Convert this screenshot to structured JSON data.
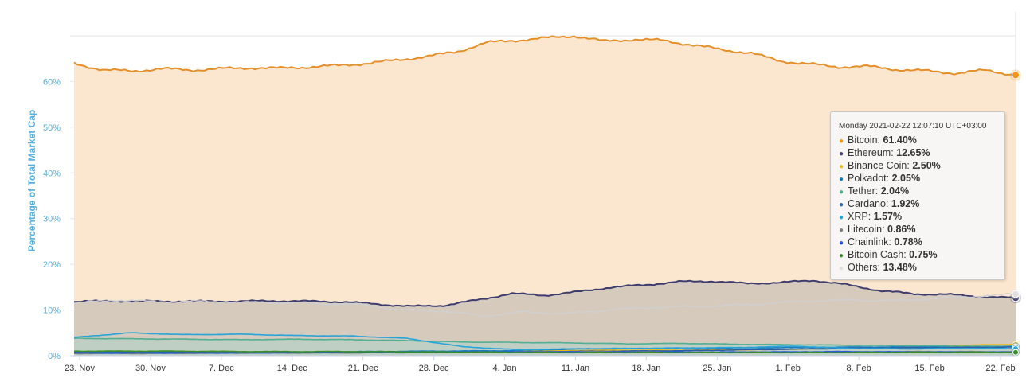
{
  "chart_data": {
    "type": "area",
    "ylabel": "Percentage of Total Market Cap",
    "y_ticks": [
      "0%",
      "10%",
      "20%",
      "30%",
      "40%",
      "50%",
      "60%"
    ],
    "ylim": [
      0,
      70
    ],
    "x_ticks": [
      "23. Nov",
      "30. Nov",
      "7. Dec",
      "14. Dec",
      "21. Dec",
      "28. Dec",
      "4. Jan",
      "11. Jan",
      "18. Jan",
      "25. Jan",
      "1. Feb",
      "8. Feb",
      "15. Feb",
      "22. Feb"
    ],
    "grid": true,
    "series": [
      {
        "name": "Bitcoin",
        "color": "#f7931a",
        "stroke": "#e58f2a",
        "fill": "#fbe6cf",
        "values": [
          64.0,
          62.5,
          62.3,
          62.8,
          62.5,
          62.8,
          63.0,
          62.9,
          63.2,
          63.5,
          64.0,
          64.7,
          65.5,
          66.5,
          68.5,
          69.0,
          69.5,
          70.0,
          68.8,
          69.2,
          69.0,
          68.0,
          67.0,
          66.2,
          64.5,
          63.8,
          63.2,
          63.3,
          62.6,
          62.3,
          61.8,
          62.5,
          61.4
        ]
      },
      {
        "name": "Ethereum",
        "color": "#3c3c6e",
        "stroke": "#3c3c6e",
        "fill": "#d6cabd",
        "values": [
          11.8,
          12.0,
          11.9,
          11.9,
          11.9,
          11.9,
          12.0,
          11.9,
          11.8,
          11.3,
          10.8,
          11.0,
          12.2,
          13.6,
          13.2,
          14.0,
          15.0,
          15.5,
          16.2,
          16.3,
          15.8,
          16.0,
          16.5,
          15.5,
          14.2,
          13.5,
          13.4,
          12.9,
          12.65
        ]
      },
      {
        "name": "Binance Coin",
        "color": "#f0b90b",
        "values": [
          0.9,
          0.9,
          0.8,
          0.8,
          0.8,
          0.9,
          0.9,
          1.1,
          1.2,
          1.2,
          1.3,
          1.5,
          1.8,
          2.2,
          2.5
        ]
      },
      {
        "name": "Polkadot",
        "color": "#1a7ac0",
        "values": [
          0.7,
          0.8,
          0.8,
          0.7,
          0.9,
          1.0,
          1.1,
          1.5,
          1.6,
          1.7,
          1.8,
          1.9,
          2.0,
          2.05
        ]
      },
      {
        "name": "Tether",
        "color": "#50af95",
        "values": [
          3.8,
          3.7,
          3.6,
          3.5,
          3.6,
          3.5,
          3.3,
          3.0,
          2.9,
          2.8,
          2.6,
          2.7,
          2.5,
          2.4,
          2.3,
          2.2,
          2.1,
          2.04
        ]
      },
      {
        "name": "Cardano",
        "color": "#2a5fa8",
        "values": [
          0.9,
          0.9,
          0.8,
          0.8,
          0.7,
          0.7,
          0.8,
          0.9,
          1.0,
          1.1,
          1.3,
          1.5,
          1.7,
          1.8,
          1.92
        ]
      },
      {
        "name": "XRP",
        "color": "#27a4d8",
        "values": [
          4.0,
          5.0,
          4.6,
          4.7,
          4.4,
          4.3,
          3.8,
          2.0,
          1.3,
          1.5,
          1.6,
          1.7,
          1.8,
          2.1,
          1.6,
          1.5,
          1.6,
          1.57
        ]
      },
      {
        "name": "Litecoin",
        "color": "#7b7f86",
        "values": [
          0.5,
          0.5,
          0.6,
          0.6,
          0.7,
          0.8,
          0.9,
          0.8,
          0.8,
          0.8,
          0.9,
          0.86
        ]
      },
      {
        "name": "Chainlink",
        "color": "#2a5ada",
        "values": [
          0.6,
          0.6,
          0.6,
          0.7,
          0.7,
          0.8,
          0.8,
          0.8,
          0.8,
          0.9,
          0.8,
          0.78
        ]
      },
      {
        "name": "Bitcoin Cash",
        "color": "#3a8e2a",
        "values": [
          1.0,
          1.0,
          0.9,
          0.9,
          0.8,
          0.7,
          0.7,
          0.7,
          0.7,
          0.75,
          0.75
        ]
      },
      {
        "name": "Others",
        "color": "#e0e0e0",
        "stroke": "#d0d0d0",
        "values": [
          11.5,
          12.2,
          11.8,
          11.9,
          11.7,
          11.6,
          11.4,
          11.2,
          10.0,
          9.8,
          8.7,
          9.6,
          9.2,
          10.0,
          10.5,
          10.8,
          11.0,
          11.5,
          12.0,
          12.2,
          12.0,
          12.5,
          13.0,
          13.48
        ]
      }
    ]
  },
  "tooltip": {
    "header": "Monday 2021-02-22 12:07:10 UTC+03:00",
    "rows": [
      {
        "name": "Bitcoin",
        "value": "61.40%",
        "color": "#f7931a"
      },
      {
        "name": "Ethereum",
        "value": "12.65%",
        "color": "#3c3c6e"
      },
      {
        "name": "Binance Coin",
        "value": "2.50%",
        "color": "#f0b90b"
      },
      {
        "name": "Polkadot",
        "value": "2.05%",
        "color": "#1a7ac0"
      },
      {
        "name": "Tether",
        "value": "2.04%",
        "color": "#50af95"
      },
      {
        "name": "Cardano",
        "value": "1.92%",
        "color": "#2a5fa8"
      },
      {
        "name": "XRP",
        "value": "1.57%",
        "color": "#27a4d8"
      },
      {
        "name": "Litecoin",
        "value": "0.86%",
        "color": "#7b7f86"
      },
      {
        "name": "Chainlink",
        "value": "0.78%",
        "color": "#2a5ada"
      },
      {
        "name": "Bitcoin Cash",
        "value": "0.75%",
        "color": "#3a8e2a"
      },
      {
        "name": "Others",
        "value": "13.48%",
        "color": "#e0e0e0"
      }
    ]
  }
}
